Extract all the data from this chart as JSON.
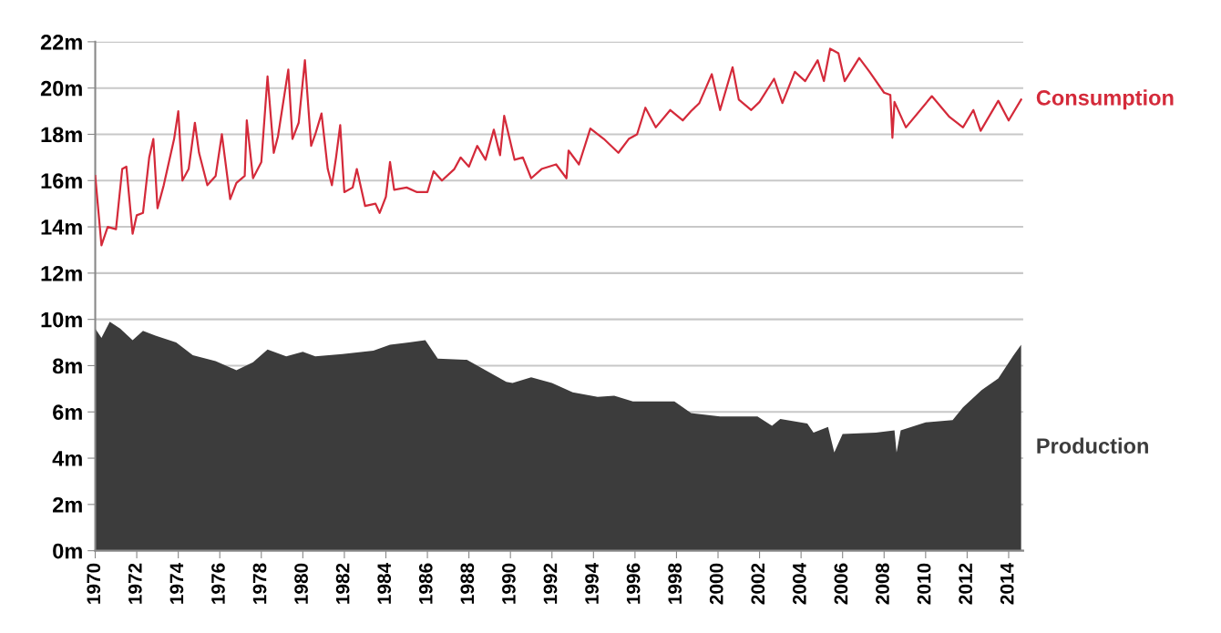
{
  "chart_data": {
    "type": "line",
    "xlim": [
      1970,
      2014.7
    ],
    "xticks": [
      1970,
      1972,
      1974,
      1976,
      1978,
      1980,
      1982,
      1984,
      1986,
      1988,
      1990,
      1992,
      1994,
      1996,
      1998,
      2000,
      2002,
      2004,
      2006,
      2008,
      2010,
      2012,
      2014
    ],
    "ylim": [
      0,
      22
    ],
    "yticks": [
      {
        "value": 0,
        "label": "0m"
      },
      {
        "value": 2,
        "label": "2m"
      },
      {
        "value": 4,
        "label": "4m"
      },
      {
        "value": 6,
        "label": "6m"
      },
      {
        "value": 8,
        "label": "8m"
      },
      {
        "value": 10,
        "label": "10m"
      },
      {
        "value": 12,
        "label": "12m"
      },
      {
        "value": 14,
        "label": "14m"
      },
      {
        "value": 16,
        "label": "16m"
      },
      {
        "value": 18,
        "label": "18m"
      },
      {
        "value": 20,
        "label": "20m"
      },
      {
        "value": 22,
        "label": "22m"
      }
    ],
    "grid": "y",
    "legend": false,
    "series": [
      {
        "name": "Production",
        "type": "area",
        "color": "#3c3c3c",
        "x": [
          1970.0,
          1970.3,
          1970.7,
          1971.2,
          1971.8,
          1972.3,
          1972.9,
          1973.9,
          1974.7,
          1975.8,
          1976.8,
          1977.6,
          1978.3,
          1979.2,
          1980.0,
          1980.6,
          1981.9,
          1983.4,
          1984.2,
          1985.1,
          1985.9,
          1986.5,
          1987.9,
          1988.8,
          1989.8,
          1990.1,
          1991.0,
          1992.0,
          1993.0,
          1994.2,
          1995.0,
          1995.9,
          1997.9,
          1998.7,
          2000.1,
          2001.9,
          2002.6,
          2003.0,
          2004.3,
          2004.6,
          2005.3,
          2005.6,
          2006.0,
          2007.6,
          2008.5,
          2008.6,
          2008.8,
          2010.0,
          2011.3,
          2011.8,
          2012.7,
          2013.5,
          2014.2,
          2014.6
        ],
        "values": [
          9.6,
          9.2,
          9.9,
          9.6,
          9.1,
          9.5,
          9.3,
          9.0,
          8.45,
          8.2,
          7.8,
          8.15,
          8.7,
          8.4,
          8.6,
          8.4,
          8.5,
          8.65,
          8.9,
          9.0,
          9.1,
          8.3,
          8.25,
          7.8,
          7.3,
          7.25,
          7.5,
          7.25,
          6.85,
          6.65,
          6.7,
          6.45,
          6.45,
          5.95,
          5.8,
          5.8,
          5.4,
          5.7,
          5.5,
          5.1,
          5.35,
          4.25,
          5.05,
          5.1,
          5.2,
          4.25,
          5.2,
          5.55,
          5.65,
          6.2,
          6.95,
          7.45,
          8.4,
          8.9
        ]
      },
      {
        "name": "Consumption",
        "color": "#d42a3a",
        "x": [
          1970.0,
          1970.3,
          1970.6,
          1971.0,
          1971.3,
          1971.5,
          1971.8,
          1972.0,
          1972.3,
          1972.6,
          1972.8,
          1973.0,
          1973.3,
          1973.8,
          1974.0,
          1974.2,
          1974.5,
          1974.8,
          1975.0,
          1975.4,
          1975.8,
          1976.1,
          1976.5,
          1976.8,
          1977.2,
          1977.3,
          1977.6,
          1978.0,
          1978.3,
          1978.6,
          1978.8,
          1979.3,
          1979.5,
          1979.8,
          1980.1,
          1980.4,
          1980.6,
          1980.9,
          1981.2,
          1981.4,
          1981.6,
          1981.8,
          1982.0,
          1982.4,
          1982.6,
          1983.0,
          1983.5,
          1983.7,
          1984.0,
          1984.2,
          1984.4,
          1985.0,
          1985.5,
          1986.0,
          1986.3,
          1986.7,
          1987.3,
          1987.6,
          1988.0,
          1988.4,
          1988.8,
          1989.2,
          1989.5,
          1989.7,
          1990.2,
          1990.6,
          1991.0,
          1991.5,
          1992.2,
          1992.7,
          1992.8,
          1993.3,
          1993.85,
          1994.5,
          1995.2,
          1995.7,
          1996.1,
          1996.5,
          1997.0,
          1997.7,
          1998.3,
          1998.7,
          1999.1,
          1999.7,
          2000.1,
          2000.7,
          2001.0,
          2001.6,
          2002.0,
          2002.7,
          2003.1,
          2003.7,
          2004.2,
          2004.8,
          2005.1,
          2005.4,
          2005.8,
          2006.1,
          2006.8,
          2007.3,
          2008.0,
          2008.3,
          2008.4,
          2008.5,
          2009.05,
          2010.3,
          2011.15,
          2011.8,
          2012.3,
          2012.65,
          2013.5,
          2014.0,
          2014.6
        ],
        "values": [
          16.2,
          13.2,
          14.0,
          13.9,
          16.5,
          16.6,
          13.7,
          14.5,
          14.6,
          17.0,
          17.8,
          14.8,
          15.8,
          17.8,
          19.0,
          16.0,
          16.5,
          18.5,
          17.2,
          15.8,
          16.2,
          18.0,
          15.2,
          15.9,
          16.2,
          18.6,
          16.1,
          16.8,
          20.5,
          17.2,
          17.9,
          20.8,
          17.8,
          18.5,
          21.2,
          17.5,
          18.0,
          18.9,
          16.5,
          15.8,
          17.0,
          18.4,
          15.5,
          15.7,
          16.5,
          14.9,
          15.0,
          14.6,
          15.3,
          16.8,
          15.6,
          15.7,
          15.5,
          15.5,
          16.4,
          16.0,
          16.5,
          17.0,
          16.6,
          17.5,
          16.9,
          18.2,
          17.1,
          18.8,
          16.9,
          17.0,
          16.1,
          16.5,
          16.7,
          16.1,
          17.3,
          16.7,
          18.25,
          17.8,
          17.2,
          17.8,
          18.0,
          19.15,
          18.3,
          19.05,
          18.6,
          19.0,
          19.35,
          20.6,
          19.05,
          20.9,
          19.5,
          19.05,
          19.4,
          20.4,
          19.35,
          20.7,
          20.3,
          21.2,
          20.3,
          21.7,
          21.5,
          20.3,
          21.3,
          20.7,
          19.8,
          19.7,
          17.85,
          19.4,
          18.3,
          19.65,
          18.75,
          18.3,
          19.05,
          18.15,
          19.45,
          18.6,
          19.5
        ]
      }
    ]
  }
}
